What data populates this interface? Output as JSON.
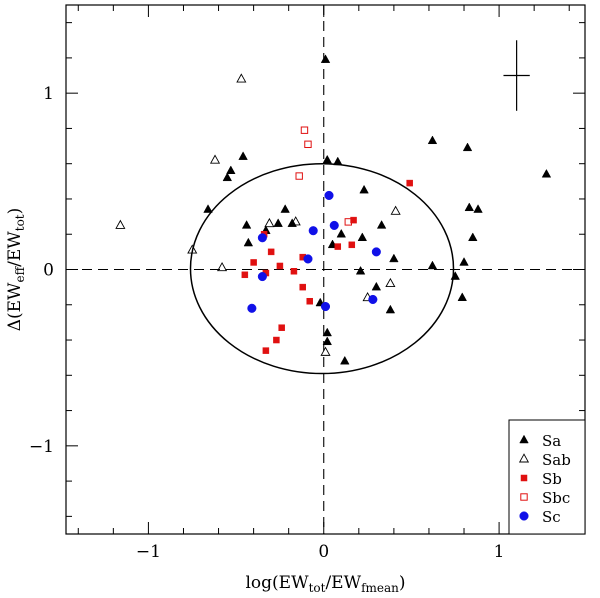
{
  "chart_data": {
    "type": "scatter",
    "title": "",
    "xlabel": {
      "pre": "log(EW",
      "sub1": "tot",
      "mid": "/EW",
      "sub2": "fmean",
      "post": ")"
    },
    "ylabel": {
      "pre": "Δ(EW",
      "sub1": "eff",
      "mid": "/EW",
      "sub2": "tot",
      "post": ")"
    },
    "xlim": [
      -1.47,
      1.49
    ],
    "ylim": [
      -1.5,
      1.5
    ],
    "x_ticks": [
      {
        "value": -1,
        "label": "−1"
      },
      {
        "value": 0,
        "label": "0"
      },
      {
        "value": 1,
        "label": "1"
      }
    ],
    "y_ticks": [
      {
        "value": -1,
        "label": "−1"
      },
      {
        "value": 0,
        "label": "0"
      },
      {
        "value": 1,
        "label": "1"
      }
    ],
    "x_minor_step": 0.2,
    "y_minor_step": 0.2,
    "reference_lines": {
      "x": 0,
      "y": 0,
      "style": "dashed"
    },
    "ellipse": {
      "cx": -0.01,
      "cy": 0.005,
      "rx": 0.75,
      "ry": 0.595
    },
    "error_bar": {
      "x": 1.1,
      "y": 1.1,
      "xerr": 0.075,
      "yerr": 0.2
    },
    "legend": {
      "position": "bottom-right"
    },
    "series": [
      {
        "name": "Sa",
        "marker": "triangle-filled",
        "color": "#000000",
        "points": [
          [
            0.01,
            1.19
          ],
          [
            -0.46,
            0.64
          ],
          [
            -0.55,
            0.52
          ],
          [
            -0.53,
            0.56
          ],
          [
            -0.66,
            0.34
          ],
          [
            -0.44,
            0.25
          ],
          [
            -0.43,
            0.15
          ],
          [
            -0.33,
            0.22
          ],
          [
            -0.26,
            0.26
          ],
          [
            -0.22,
            0.34
          ],
          [
            -0.18,
            0.26
          ],
          [
            0.02,
            0.62
          ],
          [
            0.08,
            0.61
          ],
          [
            0.1,
            0.2
          ],
          [
            0.05,
            0.14
          ],
          [
            0.23,
            0.45
          ],
          [
            0.33,
            0.25
          ],
          [
            0.22,
            0.18
          ],
          [
            0.3,
            -0.1
          ],
          [
            0.21,
            -0.01
          ],
          [
            0.4,
            0.06
          ],
          [
            0.38,
            -0.23
          ],
          [
            0.62,
            0.73
          ],
          [
            0.82,
            0.69
          ],
          [
            0.83,
            0.35
          ],
          [
            0.88,
            0.34
          ],
          [
            0.85,
            0.18
          ],
          [
            0.62,
            0.02
          ],
          [
            0.8,
            0.04
          ],
          [
            0.75,
            -0.04
          ],
          [
            0.79,
            -0.16
          ],
          [
            1.27,
            0.54
          ],
          [
            -0.02,
            -0.19
          ],
          [
            0.02,
            -0.36
          ],
          [
            0.02,
            -0.41
          ],
          [
            0.12,
            -0.52
          ]
        ]
      },
      {
        "name": "Sab",
        "marker": "triangle-open",
        "color": "#000000",
        "points": [
          [
            -1.16,
            0.25
          ],
          [
            -0.47,
            1.08
          ],
          [
            -0.62,
            0.62
          ],
          [
            -0.31,
            0.26
          ],
          [
            -0.16,
            0.27
          ],
          [
            -0.58,
            0.01
          ],
          [
            -0.75,
            0.11
          ],
          [
            0.41,
            0.33
          ],
          [
            0.38,
            -0.08
          ],
          [
            0.25,
            -0.16
          ],
          [
            0.01,
            -0.47
          ]
        ]
      },
      {
        "name": "Sb",
        "marker": "square-filled",
        "color": "#e01010",
        "points": [
          [
            0.49,
            0.49
          ],
          [
            0.17,
            0.28
          ],
          [
            0.16,
            0.14
          ],
          [
            0.08,
            0.13
          ],
          [
            -0.34,
            0.2
          ],
          [
            -0.4,
            0.04
          ],
          [
            -0.45,
            -0.03
          ],
          [
            -0.33,
            -0.02
          ],
          [
            -0.3,
            0.1
          ],
          [
            -0.25,
            0.02
          ],
          [
            -0.17,
            -0.01
          ],
          [
            -0.12,
            0.07
          ],
          [
            -0.12,
            -0.1
          ],
          [
            -0.08,
            -0.18
          ],
          [
            -0.24,
            -0.33
          ],
          [
            -0.27,
            -0.4
          ],
          [
            -0.33,
            -0.46
          ]
        ]
      },
      {
        "name": "Sbc",
        "marker": "square-open",
        "color": "#e01010",
        "points": [
          [
            -0.11,
            0.79
          ],
          [
            -0.09,
            0.71
          ],
          [
            -0.14,
            0.53
          ],
          [
            0.14,
            0.27
          ]
        ]
      },
      {
        "name": "Sc",
        "marker": "circle-filled",
        "color": "#1010e8",
        "points": [
          [
            0.03,
            0.42
          ],
          [
            -0.35,
            0.18
          ],
          [
            -0.06,
            0.22
          ],
          [
            0.06,
            0.25
          ],
          [
            -0.09,
            0.06
          ],
          [
            0.3,
            0.1
          ],
          [
            -0.35,
            -0.04
          ],
          [
            -0.41,
            -0.22
          ],
          [
            0.01,
            -0.21
          ],
          [
            0.28,
            -0.17
          ]
        ]
      }
    ]
  }
}
